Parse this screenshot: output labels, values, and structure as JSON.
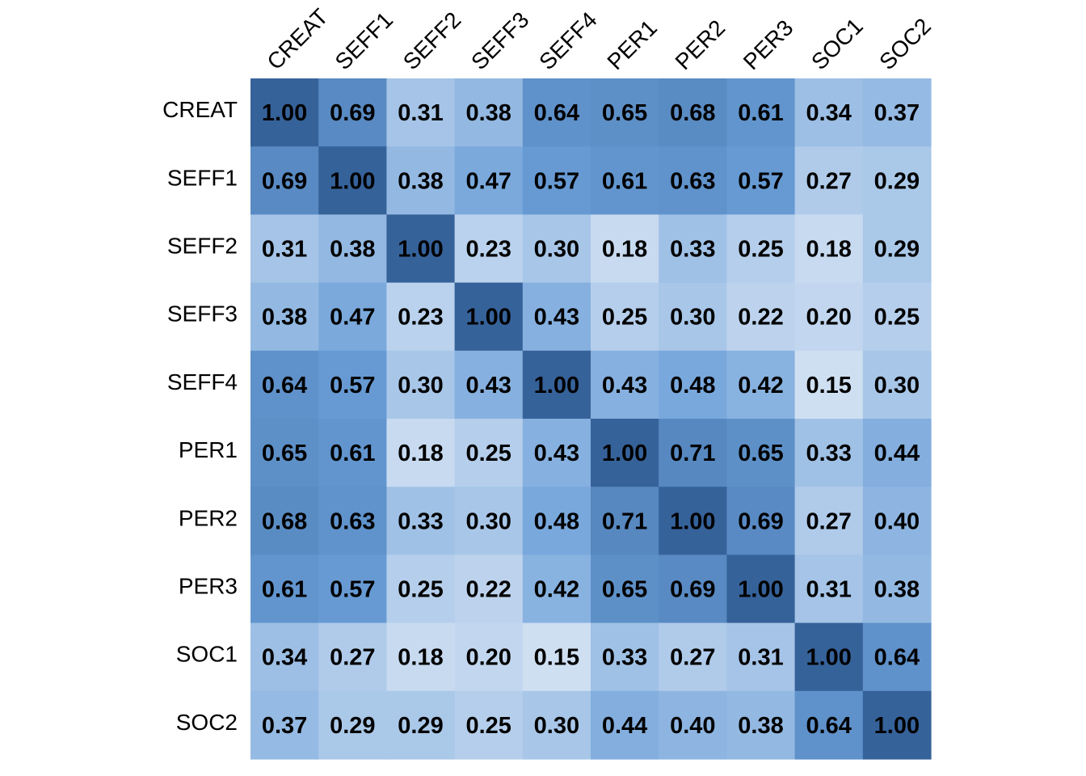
{
  "chart_data": {
    "type": "heatmap",
    "title": "",
    "xlabel": "",
    "ylabel": "",
    "variables": [
      "CREAT",
      "SEFF1",
      "SEFF2",
      "SEFF3",
      "SEFF4",
      "PER1",
      "PER2",
      "PER3",
      "SOC1",
      "SOC2"
    ],
    "row_labels": [
      "CREAT",
      "SEFF1",
      "SEFF2",
      "SEFF3",
      "SEFF4",
      "PER1",
      "PER2",
      "PER3",
      "SOC1",
      "SOC2"
    ],
    "col_labels": [
      "CREAT",
      "SEFF1",
      "SEFF2",
      "SEFF3",
      "SEFF4",
      "PER1",
      "PER2",
      "PER3",
      "SOC1",
      "SOC2"
    ],
    "values": [
      [
        1.0,
        0.69,
        0.31,
        0.38,
        0.64,
        0.65,
        0.68,
        0.61,
        0.34,
        0.37
      ],
      [
        0.69,
        1.0,
        0.38,
        0.47,
        0.57,
        0.61,
        0.63,
        0.57,
        0.27,
        0.29
      ],
      [
        0.31,
        0.38,
        1.0,
        0.23,
        0.3,
        0.18,
        0.33,
        0.25,
        0.18,
        0.29
      ],
      [
        0.38,
        0.47,
        0.23,
        1.0,
        0.43,
        0.25,
        0.3,
        0.22,
        0.2,
        0.25
      ],
      [
        0.64,
        0.57,
        0.3,
        0.43,
        1.0,
        0.43,
        0.48,
        0.42,
        0.15,
        0.3
      ],
      [
        0.65,
        0.61,
        0.18,
        0.25,
        0.43,
        1.0,
        0.71,
        0.65,
        0.33,
        0.44
      ],
      [
        0.68,
        0.63,
        0.33,
        0.3,
        0.48,
        0.71,
        1.0,
        0.69,
        0.27,
        0.4
      ],
      [
        0.61,
        0.57,
        0.25,
        0.22,
        0.42,
        0.65,
        0.69,
        1.0,
        0.31,
        0.38
      ],
      [
        0.34,
        0.27,
        0.18,
        0.2,
        0.15,
        0.33,
        0.27,
        0.31,
        1.0,
        0.64
      ],
      [
        0.37,
        0.29,
        0.29,
        0.25,
        0.3,
        0.44,
        0.4,
        0.38,
        0.64,
        1.0
      ]
    ],
    "value_format": "2 decimals",
    "color_scale": {
      "low_value": 0.15,
      "high_value": 1.0,
      "low_color": "#cfdff2",
      "mid_color": "#6b9fd8",
      "high_color": "#36629a"
    },
    "legend": "none",
    "grid": false,
    "col_label_rotation": "diagonal, top"
  }
}
